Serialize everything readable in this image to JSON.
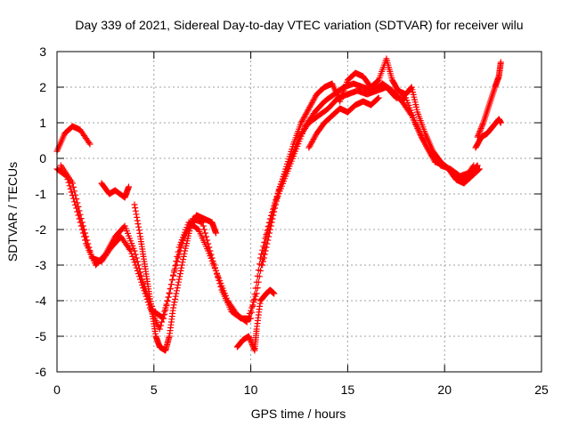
{
  "chart_data": {
    "type": "scatter",
    "title": "Day 339 of 2021, Sidereal Day-to-day VTEC variation (SDTVAR) for receiver wilu",
    "xlabel": "GPS time / hours",
    "ylabel": "SDTVAR / TECUs",
    "xlim": [
      0,
      25
    ],
    "ylim": [
      -6,
      3
    ],
    "xticks": [
      0,
      5,
      10,
      15,
      20,
      25
    ],
    "yticks": [
      -6,
      -5,
      -4,
      -3,
      -2,
      -1,
      0,
      1,
      2,
      3
    ],
    "grid": true,
    "marker": "+",
    "color": "#ff0000",
    "series": [
      {
        "name": "trace-1",
        "points": [
          [
            0.0,
            -0.3
          ],
          [
            0.5,
            -0.5
          ],
          [
            1.0,
            -1.4
          ],
          [
            1.5,
            -2.4
          ],
          [
            2.0,
            -3.0
          ],
          [
            2.5,
            -2.7
          ],
          [
            3.0,
            -2.2
          ],
          [
            3.5,
            -1.9
          ],
          [
            4.0,
            -2.6
          ],
          [
            4.5,
            -3.6
          ],
          [
            5.0,
            -4.3
          ],
          [
            5.5,
            -4.5
          ],
          [
            6.0,
            -3.3
          ],
          [
            6.5,
            -2.3
          ],
          [
            7.0,
            -1.7
          ],
          [
            7.5,
            -1.8
          ],
          [
            8.0,
            -2.8
          ],
          [
            8.5,
            -3.7
          ],
          [
            9.0,
            -4.3
          ],
          [
            9.5,
            -4.5
          ],
          [
            10.0,
            -4.5
          ],
          [
            10.5,
            -2.8
          ],
          [
            11.0,
            -1.7
          ],
          [
            11.5,
            -0.8
          ],
          [
            12.0,
            -0.1
          ],
          [
            12.5,
            0.6
          ],
          [
            13.0,
            1.0
          ],
          [
            13.5,
            1.2
          ],
          [
            14.0,
            1.4
          ],
          [
            14.5,
            1.7
          ],
          [
            15.0,
            1.8
          ],
          [
            15.5,
            1.9
          ],
          [
            16.0,
            1.8
          ],
          [
            16.5,
            1.9
          ],
          [
            17.0,
            2.0
          ],
          [
            17.5,
            1.7
          ],
          [
            18.0,
            1.7
          ],
          [
            18.5,
            1.0
          ],
          [
            19.0,
            0.4
          ],
          [
            19.5,
            -0.1
          ],
          [
            20.0,
            -0.2
          ],
          [
            20.5,
            -0.4
          ],
          [
            21.0,
            -0.6
          ],
          [
            21.5,
            -0.2
          ]
        ]
      },
      {
        "name": "trace-2",
        "points": [
          [
            0.2,
            -0.2
          ],
          [
            0.8,
            -0.7
          ],
          [
            1.3,
            -1.8
          ],
          [
            1.8,
            -2.8
          ],
          [
            2.3,
            -2.9
          ],
          [
            2.8,
            -2.5
          ],
          [
            3.3,
            -2.2
          ],
          [
            3.8,
            -2.6
          ],
          [
            4.3,
            -3.4
          ],
          [
            4.8,
            -4.2
          ],
          [
            5.3,
            -4.8
          ],
          [
            5.8,
            -3.8
          ],
          [
            6.3,
            -2.5
          ],
          [
            6.8,
            -1.8
          ],
          [
            7.3,
            -2.0
          ],
          [
            7.8,
            -2.6
          ],
          [
            8.3,
            -3.3
          ],
          [
            8.8,
            -4.0
          ],
          [
            9.3,
            -4.4
          ],
          [
            9.8,
            -4.6
          ],
          [
            10.3,
            -3.8
          ],
          [
            10.8,
            -2.2
          ],
          [
            11.3,
            -1.2
          ],
          [
            11.8,
            -0.5
          ],
          [
            12.3,
            0.2
          ],
          [
            12.8,
            0.9
          ],
          [
            13.3,
            1.3
          ],
          [
            13.8,
            1.6
          ],
          [
            14.3,
            1.8
          ],
          [
            14.8,
            2.0
          ],
          [
            15.3,
            2.1
          ],
          [
            15.8,
            2.0
          ],
          [
            16.3,
            1.9
          ],
          [
            16.8,
            2.1
          ],
          [
            17.3,
            1.9
          ],
          [
            17.8,
            1.6
          ],
          [
            18.3,
            1.2
          ],
          [
            18.8,
            0.6
          ],
          [
            19.3,
            0.1
          ],
          [
            19.8,
            -0.2
          ],
          [
            20.3,
            -0.3
          ],
          [
            20.8,
            -0.5
          ],
          [
            21.3,
            -0.4
          ],
          [
            21.7,
            -0.2
          ]
        ]
      },
      {
        "name": "trace-3",
        "points": [
          [
            0.0,
            0.2
          ],
          [
            0.4,
            0.7
          ],
          [
            0.8,
            0.9
          ],
          [
            1.2,
            0.8
          ],
          [
            1.7,
            0.4
          ]
        ]
      },
      {
        "name": "trace-4",
        "points": [
          [
            2.3,
            -0.7
          ],
          [
            2.7,
            -1.0
          ],
          [
            3.0,
            -0.9
          ],
          [
            3.5,
            -1.1
          ],
          [
            3.7,
            -0.8
          ]
        ]
      },
      {
        "name": "trace-5",
        "points": [
          [
            4.0,
            -1.3
          ],
          [
            4.3,
            -2.2
          ],
          [
            4.5,
            -2.9
          ],
          [
            4.7,
            -3.6
          ],
          [
            4.9,
            -4.3
          ],
          [
            5.1,
            -5.0
          ],
          [
            5.3,
            -5.3
          ],
          [
            5.6,
            -5.4
          ],
          [
            5.8,
            -5.0
          ],
          [
            6.0,
            -4.2
          ],
          [
            6.3,
            -3.4
          ],
          [
            6.6,
            -2.6
          ],
          [
            6.9,
            -1.9
          ],
          [
            7.2,
            -1.6
          ],
          [
            7.6,
            -1.7
          ],
          [
            8.0,
            -1.8
          ],
          [
            8.2,
            -2.1
          ]
        ]
      },
      {
        "name": "trace-6",
        "points": [
          [
            9.3,
            -5.3
          ],
          [
            9.6,
            -5.1
          ],
          [
            9.9,
            -5.0
          ],
          [
            10.2,
            -5.4
          ],
          [
            10.3,
            -4.8
          ],
          [
            10.5,
            -4.0
          ],
          [
            10.8,
            -3.8
          ],
          [
            11.0,
            -3.7
          ],
          [
            11.2,
            -3.8
          ]
        ]
      },
      {
        "name": "trace-7",
        "points": [
          [
            10.6,
            -3.0
          ],
          [
            11.0,
            -2.0
          ],
          [
            11.4,
            -1.0
          ],
          [
            11.8,
            -0.3
          ],
          [
            12.2,
            0.4
          ],
          [
            12.6,
            1.0
          ],
          [
            13.0,
            1.4
          ],
          [
            13.4,
            1.8
          ],
          [
            13.8,
            2.0
          ],
          [
            14.2,
            2.1
          ],
          [
            14.6,
            1.6
          ],
          [
            15.0,
            2.2
          ],
          [
            15.4,
            2.4
          ],
          [
            15.8,
            2.3
          ],
          [
            16.2,
            2.0
          ],
          [
            16.6,
            2.2
          ],
          [
            17.0,
            2.8
          ],
          [
            17.3,
            2.2
          ],
          [
            17.6,
            1.9
          ],
          [
            18.0,
            1.8
          ],
          [
            18.3,
            2.0
          ],
          [
            18.6,
            1.3
          ],
          [
            19.0,
            0.7
          ],
          [
            19.4,
            0.2
          ],
          [
            19.8,
            -0.1
          ],
          [
            20.2,
            -0.3
          ],
          [
            20.6,
            -0.6
          ],
          [
            21.0,
            -0.7
          ],
          [
            21.4,
            -0.5
          ],
          [
            21.8,
            -0.3
          ]
        ]
      },
      {
        "name": "trace-8",
        "points": [
          [
            13.0,
            0.3
          ],
          [
            13.4,
            0.7
          ],
          [
            13.8,
            1.0
          ],
          [
            14.2,
            1.2
          ],
          [
            14.6,
            1.4
          ],
          [
            15.0,
            1.3
          ],
          [
            15.4,
            1.5
          ],
          [
            15.8,
            1.6
          ],
          [
            16.2,
            1.5
          ],
          [
            16.6,
            1.7
          ]
        ]
      },
      {
        "name": "trace-9",
        "points": [
          [
            21.6,
            0.3
          ],
          [
            21.9,
            0.6
          ],
          [
            22.2,
            0.7
          ],
          [
            22.5,
            0.9
          ],
          [
            22.8,
            1.1
          ],
          [
            22.9,
            1.0
          ]
        ]
      },
      {
        "name": "trace-10",
        "points": [
          [
            21.7,
            0.6
          ],
          [
            22.0,
            1.0
          ],
          [
            22.3,
            1.5
          ],
          [
            22.6,
            2.0
          ],
          [
            22.8,
            2.3
          ],
          [
            22.9,
            2.7
          ]
        ]
      }
    ]
  }
}
